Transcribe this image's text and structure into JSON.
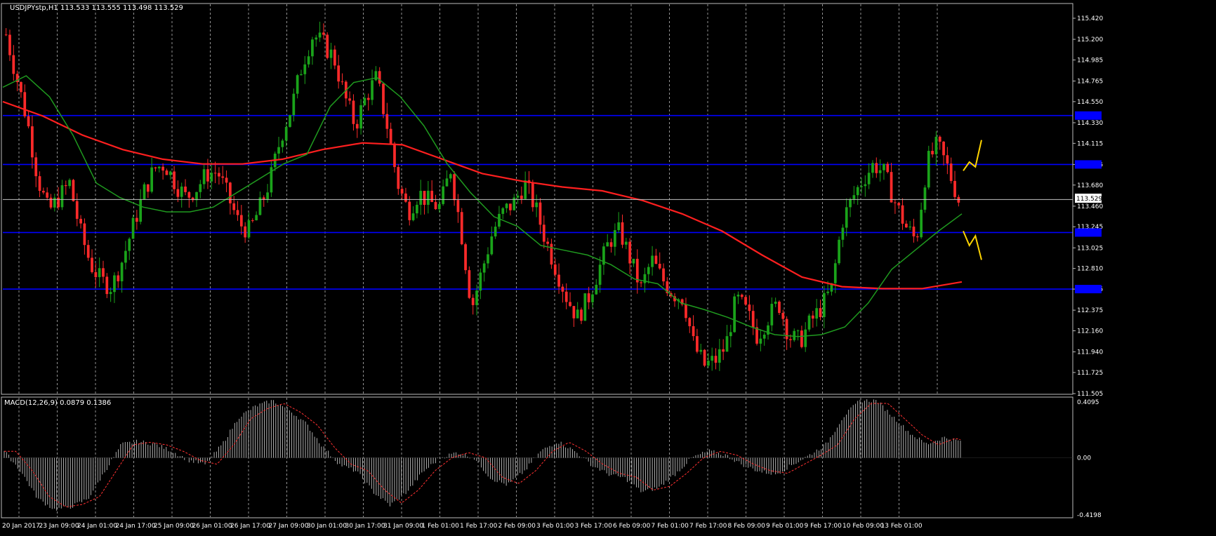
{
  "header": {
    "symbol_info": "USDJPYstp,H1  113.533 113.555 113.498 113.529"
  },
  "macd_panel": {
    "label": "MACD(12,26,9) 0.0879 0.1386"
  },
  "colors": {
    "background": "#000000",
    "grid": "#cfcfcf",
    "up_candle": "#1aa31a",
    "down_candle": "#ff2a2a",
    "sma_fast": "#1f9a1f",
    "sma_slow": "#ff1f1f",
    "level_line": "#0000ff",
    "price_line": "#c0c0c0",
    "forecast": "#ffd400",
    "macd_hist": "#d8d8d8",
    "macd_signal": "#ff3030"
  },
  "chart_data": {
    "type": "candlestick",
    "price_axis": {
      "range": [
        111.505,
        115.42
      ],
      "ticks": [
        "115.420",
        "115.200",
        "114.985",
        "114.765",
        "114.550",
        "114.330",
        "114.115",
        "113.895",
        "113.680",
        "113.460",
        "113.245",
        "113.025",
        "112.810",
        "112.595",
        "112.375",
        "112.160",
        "111.940",
        "111.725",
        "111.505"
      ]
    },
    "current_price": "113.529",
    "time_axis_labels": [
      "20 Jan 2017",
      "23 Jan 09:00",
      "24 Jan 01:00",
      "24 Jan 17:00",
      "25 Jan 09:00",
      "26 Jan 01:00",
      "26 Jan 17:00",
      "27 Jan 09:00",
      "30 Jan 01:00",
      "30 Jan 17:00",
      "31 Jan 09:00",
      "1 Feb 01:00",
      "1 Feb 17:00",
      "2 Feb 09:00",
      "3 Feb 01:00",
      "3 Feb 17:00",
      "6 Feb 09:00",
      "7 Feb 01:00",
      "7 Feb 17:00",
      "8 Feb 09:00",
      "9 Feb 01:00",
      "9 Feb 17:00",
      "10 Feb 09:00",
      "13 Feb 01:00"
    ],
    "close_path": [
      115.25,
      114.8,
      114.35,
      113.75,
      113.4,
      113.55,
      113.7,
      113.2,
      112.85,
      112.68,
      112.62,
      112.9,
      113.25,
      113.6,
      113.85,
      113.9,
      113.7,
      113.55,
      113.65,
      113.8,
      113.82,
      113.55,
      113.28,
      113.2,
      113.45,
      113.75,
      114.2,
      114.5,
      114.95,
      115.25,
      115.15,
      115.0,
      114.6,
      114.3,
      114.6,
      114.8,
      114.3,
      113.7,
      113.4,
      113.6,
      113.5,
      113.45,
      113.85,
      113.2,
      112.4,
      112.8,
      113.2,
      113.4,
      113.5,
      113.7,
      113.45,
      113.1,
      112.8,
      112.5,
      112.3,
      112.5,
      112.8,
      113.1,
      113.2,
      112.9,
      112.6,
      112.9,
      112.7,
      112.55,
      112.5,
      112.0,
      111.8,
      111.85,
      112.0,
      112.5,
      112.35,
      112.1,
      112.3,
      112.45,
      112.1,
      112.05,
      112.25,
      112.4,
      112.6,
      113.3,
      113.55,
      113.75,
      113.9,
      113.8,
      113.5,
      113.25,
      113.1,
      113.9,
      114.1,
      113.85,
      113.53
    ],
    "sma_fast": [
      114.7,
      114.82,
      114.6,
      114.2,
      113.7,
      113.55,
      113.45,
      113.4,
      113.4,
      113.45,
      113.6,
      113.75,
      113.9,
      114.0,
      114.5,
      114.75,
      114.8,
      114.6,
      114.3,
      113.9,
      113.6,
      113.35,
      113.25,
      113.05,
      113.0,
      112.95,
      112.85,
      112.7,
      112.65,
      112.45,
      112.38,
      112.3,
      112.2,
      112.12,
      112.1,
      112.12,
      112.2,
      112.45,
      112.8,
      113.0,
      113.2,
      113.38
    ],
    "sma_slow": [
      114.55,
      114.4,
      114.2,
      114.05,
      113.95,
      113.9,
      113.9,
      113.95,
      114.05,
      114.12,
      114.1,
      113.95,
      113.8,
      113.72,
      113.66,
      113.62,
      113.52,
      113.38,
      113.2,
      112.95,
      112.72,
      112.62,
      112.6,
      112.6,
      112.67
    ],
    "support_resistance_levels": [
      114.405,
      113.895,
      113.185,
      112.595
    ],
    "forecast_up": [
      113.83,
      113.92,
      113.87,
      114.15
    ],
    "forecast_down": [
      113.2,
      113.05,
      113.15,
      112.9
    ],
    "macd": {
      "range": [
        -0.4198,
        0.4095
      ],
      "ticks": [
        "0.4095",
        "0.00",
        "-0.4198"
      ],
      "envelope": [
        0.05,
        -0.1,
        -0.3,
        -0.38,
        -0.36,
        -0.3,
        -0.1,
        0.1,
        0.12,
        0.1,
        0.05,
        -0.02,
        -0.05,
        0.1,
        0.3,
        0.38,
        0.42,
        0.35,
        0.25,
        0.08,
        -0.05,
        -0.1,
        -0.25,
        -0.35,
        -0.25,
        -0.1,
        0.0,
        0.04,
        0.0,
        -0.15,
        -0.2,
        -0.1,
        0.05,
        0.12,
        0.05,
        -0.05,
        -0.12,
        -0.15,
        -0.25,
        -0.22,
        -0.12,
        0.0,
        0.05,
        0.02,
        -0.05,
        -0.1,
        -0.12,
        -0.05,
        0.02,
        0.1,
        0.3,
        0.42,
        0.42,
        0.3,
        0.18,
        0.1,
        0.15,
        0.12
      ]
    }
  }
}
